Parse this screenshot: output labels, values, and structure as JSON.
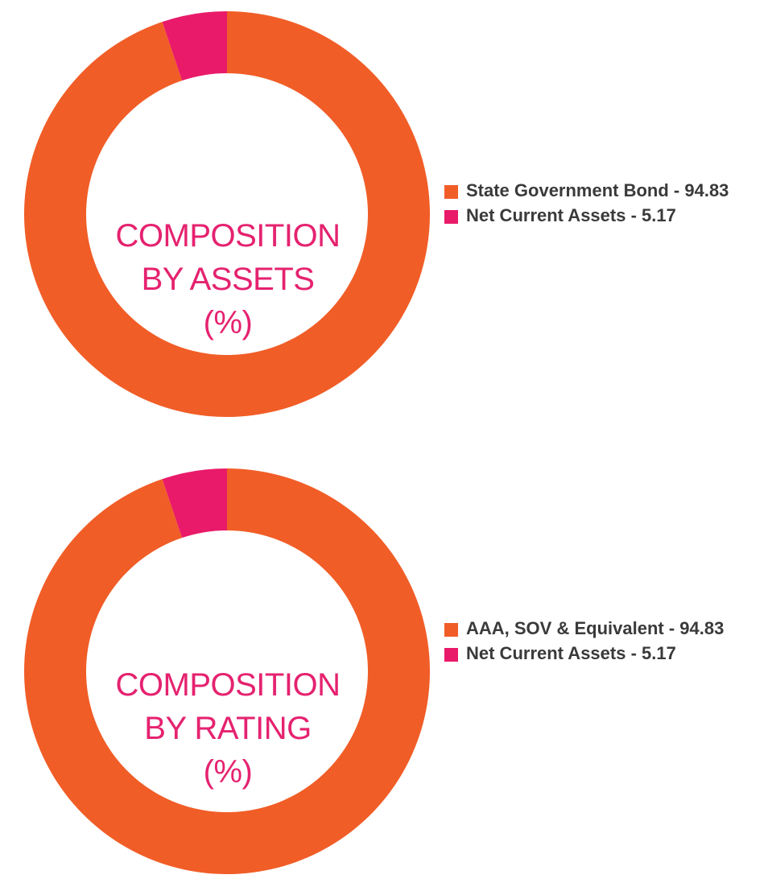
{
  "colors": {
    "orange": "#f15d27",
    "pink": "#e91a69",
    "label": "#e5226f",
    "legend_text": "#3a3a3a"
  },
  "chart_data": [
    {
      "type": "pie",
      "donut": true,
      "center_label": [
        "COMPOSITION",
        "BY ASSETS",
        "(%)"
      ],
      "series": [
        {
          "name": "State Government Bond",
          "value": 94.83,
          "color": "#f15d27"
        },
        {
          "name": "Net Current Assets",
          "value": 5.17,
          "color": "#e91a69"
        }
      ],
      "legend": [
        "State Government Bond - 94.83",
        "Net Current Assets - 5.17"
      ],
      "legend_position": "right"
    },
    {
      "type": "pie",
      "donut": true,
      "center_label": [
        "COMPOSITION",
        "BY RATING",
        "(%)"
      ],
      "series": [
        {
          "name": "AAA, SOV & Equivalent",
          "value": 94.83,
          "color": "#f15d27"
        },
        {
          "name": "Net Current Assets",
          "value": 5.17,
          "color": "#e91a69"
        }
      ],
      "legend": [
        "AAA, SOV & Equivalent - 94.83",
        "Net Current Assets - 5.17"
      ],
      "legend_position": "right"
    }
  ]
}
